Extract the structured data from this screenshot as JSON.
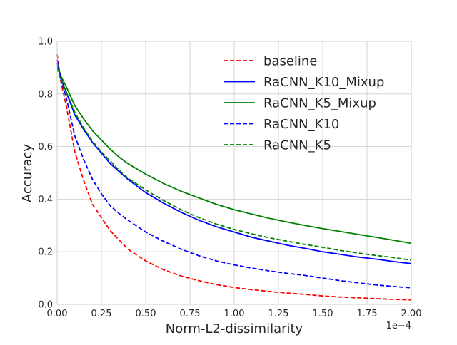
{
  "chart_data": {
    "type": "line",
    "title": "",
    "xlabel": "Norm-L2-dissimilarity",
    "ylabel": "Accuracy",
    "x_offset_label": "1e−4",
    "xlim": [
      0.0,
      0.0002
    ],
    "ylim": [
      0.0,
      1.0
    ],
    "x_ticks": [
      0.0,
      2.5e-05,
      5e-05,
      7.5e-05,
      0.0001,
      0.000125,
      0.00015,
      0.000175,
      0.0002
    ],
    "x_tick_labels": [
      "0.00",
      "0.25",
      "0.50",
      "0.75",
      "1.00",
      "1.25",
      "1.50",
      "1.75",
      "2.00"
    ],
    "y_ticks": [
      0.0,
      0.2,
      0.4,
      0.6,
      0.8,
      1.0
    ],
    "y_tick_labels": [
      "0.0",
      "0.2",
      "0.4",
      "0.6",
      "0.8",
      "1.0"
    ],
    "grid": true,
    "legend_position": "top-right",
    "x": [
      0.0,
      2e-06,
      5e-06,
      1e-05,
      1.5e-05,
      2e-05,
      2.5e-05,
      3e-05,
      3.5e-05,
      4e-05,
      5e-05,
      6e-05,
      7e-05,
      8e-05,
      9e-05,
      0.0001,
      0.00011,
      0.00012,
      0.00013,
      0.00014,
      0.00015,
      0.00016,
      0.00017,
      0.00018,
      0.00019,
      0.0002
    ],
    "series": [
      {
        "name": "baseline",
        "color": "#ff0000",
        "dash": "dashed",
        "values": [
          0.95,
          0.85,
          0.76,
          0.58,
          0.47,
          0.38,
          0.33,
          0.28,
          0.245,
          0.21,
          0.165,
          0.132,
          0.108,
          0.09,
          0.075,
          0.064,
          0.056,
          0.049,
          0.043,
          0.038,
          0.032,
          0.028,
          0.025,
          0.022,
          0.019,
          0.017
        ]
      },
      {
        "name": "RaCNN_K10_Mixup",
        "color": "#0000ff",
        "dash": "solid",
        "values": [
          0.92,
          0.86,
          0.81,
          0.72,
          0.665,
          0.615,
          0.575,
          0.535,
          0.505,
          0.475,
          0.425,
          0.385,
          0.35,
          0.32,
          0.295,
          0.275,
          0.255,
          0.24,
          0.225,
          0.213,
          0.2,
          0.19,
          0.18,
          0.172,
          0.163,
          0.155
        ]
      },
      {
        "name": "RaCNN_K5_Mixup",
        "color": "#008000",
        "dash": "solid",
        "values": [
          0.915,
          0.87,
          0.83,
          0.755,
          0.705,
          0.66,
          0.625,
          0.59,
          0.56,
          0.535,
          0.495,
          0.46,
          0.43,
          0.405,
          0.38,
          0.36,
          0.343,
          0.327,
          0.313,
          0.3,
          0.288,
          0.277,
          0.266,
          0.255,
          0.244,
          0.232
        ]
      },
      {
        "name": "RaCNN_K10",
        "color": "#0000ff",
        "dash": "dashed",
        "values": [
          0.93,
          0.86,
          0.79,
          0.64,
          0.55,
          0.475,
          0.42,
          0.375,
          0.345,
          0.32,
          0.275,
          0.24,
          0.21,
          0.185,
          0.165,
          0.15,
          0.138,
          0.127,
          0.118,
          0.11,
          0.1,
          0.09,
          0.082,
          0.074,
          0.068,
          0.063
        ]
      },
      {
        "name": "RaCNN_K5",
        "color": "#008000",
        "dash": "dashed",
        "values": [
          0.9,
          0.855,
          0.81,
          0.73,
          0.67,
          0.62,
          0.58,
          0.545,
          0.51,
          0.48,
          0.435,
          0.395,
          0.36,
          0.33,
          0.305,
          0.285,
          0.268,
          0.253,
          0.24,
          0.228,
          0.217,
          0.205,
          0.195,
          0.186,
          0.178,
          0.168
        ]
      }
    ]
  }
}
